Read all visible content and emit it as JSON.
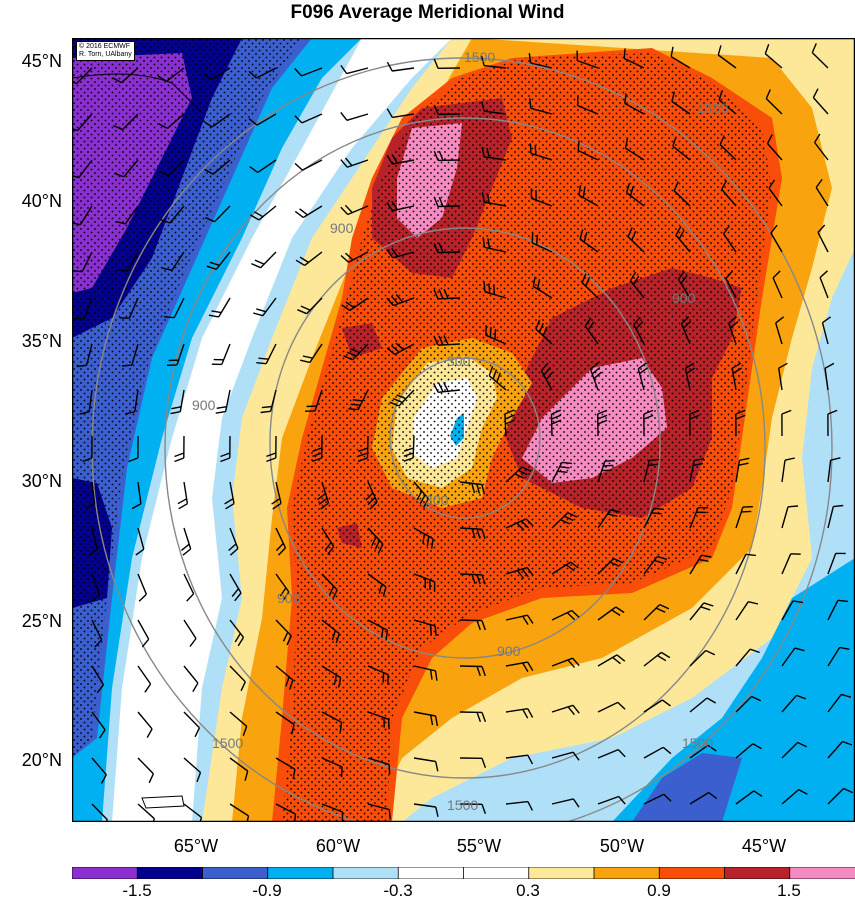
{
  "title": "F096 Average Meridional Wind",
  "credits": {
    "line1": "© 2016 ECMWF",
    "line2": "R. Torn, UAlbany"
  },
  "lat_labels": [
    "45°N",
    "40°N",
    "35°N",
    "30°N",
    "25°N",
    "20°N"
  ],
  "lon_labels": [
    "65°W",
    "60°W",
    "55°W",
    "50°W",
    "45°W"
  ],
  "colorbar": {
    "colors": [
      "#8a2fd0",
      "#02008c",
      "#3c5fd0",
      "#00b0f0",
      "#b0e0f8",
      "#ffffff",
      "#ffffff",
      "#fde89a",
      "#f9a30e",
      "#f94d0a",
      "#b8232a",
      "#f58bc0"
    ],
    "labels": [
      "-1.5",
      "-0.9",
      "-0.3",
      "0.3",
      "0.9",
      "1.5"
    ]
  },
  "contour_labels": [
    "1500",
    "1500",
    "900",
    "900",
    "300",
    "300",
    "900",
    "900",
    "1500",
    "1500",
    "900",
    "1500"
  ]
}
